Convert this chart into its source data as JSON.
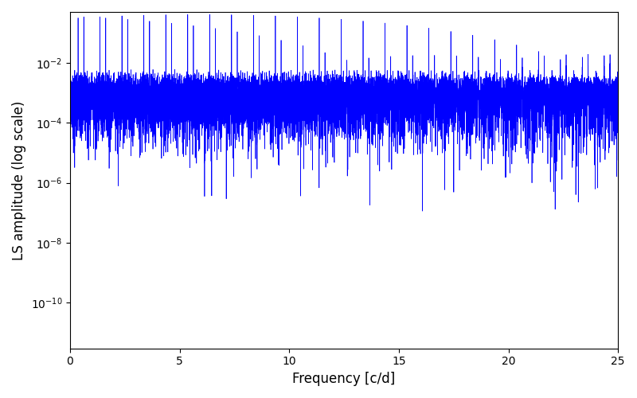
{
  "xlabel": "Frequency [c/d]",
  "ylabel": "LS amplitude (log scale)",
  "xlim": [
    0,
    25
  ],
  "ylim": [
    3e-12,
    0.5
  ],
  "line_color": "#0000ff",
  "line_width": 0.5,
  "figsize": [
    8.0,
    5.0
  ],
  "dpi": 100,
  "xticks": [
    0,
    5,
    10,
    15,
    20,
    25
  ]
}
